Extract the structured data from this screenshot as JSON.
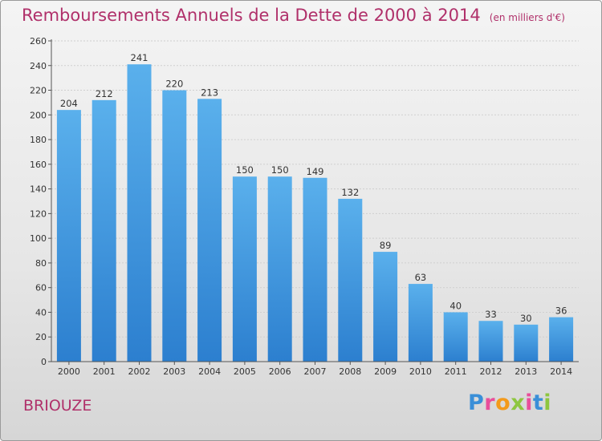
{
  "header": {
    "title": "Remboursements Annuels de la Dette de 2000 à 2014",
    "unit": "(en milliers d'€)"
  },
  "footer": {
    "commune": "BRIOUZE",
    "logo_letters": [
      "P",
      "r",
      "o",
      "x",
      "i",
      "t",
      "i"
    ]
  },
  "colors": {
    "title": "#b0306a",
    "bar_top": "#5ab0ec",
    "bar_bottom": "#2c7fcf",
    "logo": [
      "#3a8fd8",
      "#e94e9b",
      "#f39a1b",
      "#8dc63f",
      "#e94e9b",
      "#3a8fd8",
      "#8dc63f"
    ]
  },
  "chart_data": {
    "type": "bar",
    "title": "Remboursements Annuels de la Dette de 2000 à 2014",
    "xlabel": "",
    "ylabel": "en milliers d'€",
    "categories": [
      "2000",
      "2001",
      "2002",
      "2003",
      "2004",
      "2005",
      "2006",
      "2007",
      "2008",
      "2009",
      "2010",
      "2011",
      "2012",
      "2013",
      "2014"
    ],
    "values": [
      204,
      212,
      241,
      220,
      213,
      150,
      150,
      149,
      132,
      89,
      63,
      40,
      33,
      30,
      36
    ],
    "ylim": [
      0,
      260
    ],
    "yticks": [
      0,
      20,
      40,
      60,
      80,
      100,
      120,
      140,
      160,
      180,
      200,
      220,
      240,
      260
    ],
    "grid": true
  }
}
